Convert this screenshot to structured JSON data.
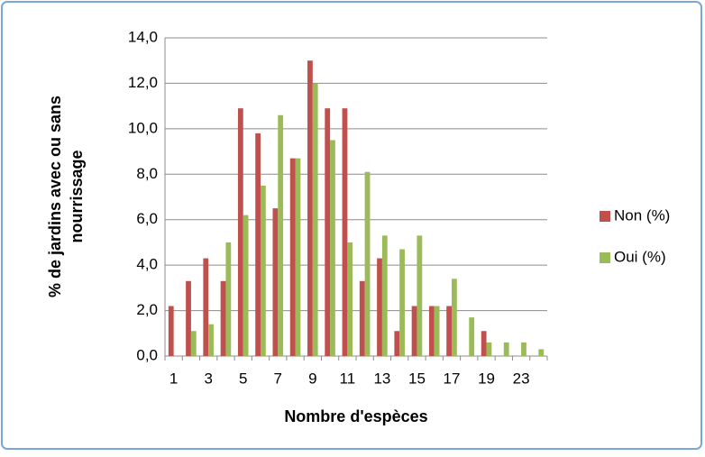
{
  "chart_data": {
    "type": "bar",
    "xlabel": "Nombre d'espèces",
    "ylabel": [
      "% de jardins avec ou sans",
      "nourrissage"
    ],
    "categories": [
      1,
      null,
      3,
      null,
      5,
      null,
      7,
      null,
      9,
      null,
      11,
      null,
      13,
      null,
      15,
      null,
      17,
      null,
      19,
      null,
      23,
      null
    ],
    "series": [
      {
        "name": "Non (%)",
        "color": "#c0504d",
        "values": [
          2.2,
          3.3,
          4.3,
          3.3,
          10.9,
          9.8,
          6.5,
          8.7,
          13.0,
          10.9,
          10.9,
          3.3,
          4.3,
          1.1,
          2.2,
          2.2,
          2.2,
          0,
          1.1,
          0,
          0,
          0
        ]
      },
      {
        "name": "Oui (%)",
        "color": "#9bbb59",
        "values": [
          0,
          1.1,
          1.4,
          5.0,
          6.2,
          7.5,
          10.6,
          8.7,
          12.0,
          9.5,
          5.0,
          8.1,
          5.3,
          4.7,
          5.3,
          2.2,
          3.4,
          1.7,
          0.6,
          0.6,
          0.6,
          0.3
        ]
      }
    ],
    "ylim": [
      0,
      14
    ],
    "yticks": [
      {
        "value": 0,
        "label": "0,0"
      },
      {
        "value": 2,
        "label": "2,0"
      },
      {
        "value": 4,
        "label": "4,0"
      },
      {
        "value": 6,
        "label": "6,0"
      },
      {
        "value": 8,
        "label": "8,0"
      },
      {
        "value": 10,
        "label": "10,0"
      },
      {
        "value": 12,
        "label": "12,0"
      },
      {
        "value": 14,
        "label": "14,0"
      }
    ],
    "grid": true,
    "legend": "right"
  }
}
